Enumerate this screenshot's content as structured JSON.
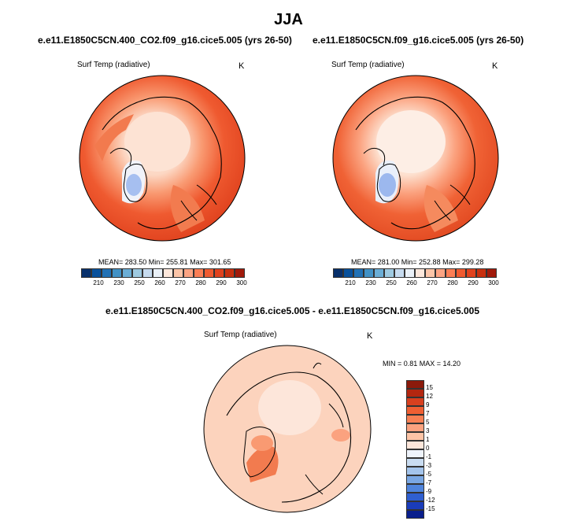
{
  "title": "JJA",
  "panels": [
    {
      "case": "e.e11.E1850C5CN.400_CO2.f09_g16.cice5.005 (yrs 26-50)",
      "variable": "Surf Temp (radiative)",
      "unit": "K",
      "stats": "MEAN= 283.50  Min= 255.81  Max= 301.65"
    },
    {
      "case": "e.e11.E1850C5CN.f09_g16.cice5.005 (yrs 26-50)",
      "variable": "Surf Temp (radiative)",
      "unit": "K",
      "stats": "MEAN= 281.00  Min= 252.88  Max= 299.28"
    }
  ],
  "abs_colorbar": {
    "ticks": [
      "210",
      "230",
      "250",
      "260",
      "270",
      "280",
      "290",
      "300"
    ],
    "colors": [
      "#08306b",
      "#08519c",
      "#2171b5",
      "#4292c6",
      "#6baed6",
      "#9ecae1",
      "#c6dbef",
      "#eaf1f8",
      "#fde8dc",
      "#fcc5a8",
      "#fca483",
      "#fb7e55",
      "#ef5a30",
      "#e0421e",
      "#c8300f",
      "#a11a0b"
    ]
  },
  "diff": {
    "title": "e.e11.E1850C5CN.400_CO2.f09_g16.cice5.005 - e.e11.E1850C5CN.f09_g16.cice5.005",
    "variable": "Surf Temp (radiative)",
    "unit": "K",
    "stats": "MIN =   0.81 MAX =  14.20",
    "ticks": [
      "15",
      "12",
      "9",
      "7",
      "5",
      "3",
      "1",
      "0",
      "-1",
      "-3",
      "-5",
      "-7",
      "-9",
      "-12",
      "-15"
    ],
    "colors": [
      "#8b1a0b",
      "#b32710",
      "#d8401f",
      "#ef5f33",
      "#f88054",
      "#fba27f",
      "#fdc4a6",
      "#fde6da",
      "#eef3fb",
      "#c9dcf1",
      "#a4c4eb",
      "#7aa7e3",
      "#4f84dc",
      "#2f5fd0",
      "#1a3cba",
      "#0a1f8c"
    ]
  }
}
